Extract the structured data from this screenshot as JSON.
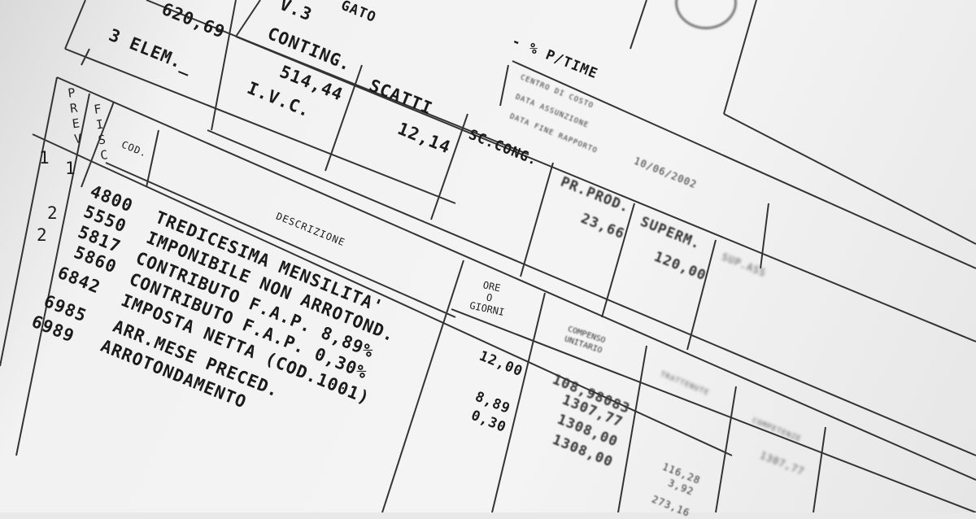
{
  "header": {
    "level_value": "V.3",
    "job_title_fragment": "GATO",
    "part_time": "- % P/TIME",
    "minimum_value": "620,69",
    "third_element": "3 ELEM._",
    "contingency_label": "CONTING.",
    "contingency_value": "514,44",
    "ivc_label": "I.V.C.",
    "increments_label": "SCATTI",
    "increments_value": "12,14",
    "sc_cong_label": "SC.CONG.",
    "pr_prod_label": "PR.PROD.",
    "pr_prod_value": "23,66",
    "superm_label": "SUPERM.",
    "superm_value": "120,00",
    "sup_ass_label": "SUP.ASS",
    "cost_center_label": "CENTRO DI COSTO",
    "hire_date_label": "DATA ASSUNZIONE",
    "end_date_label": "DATA FINE RAPPORTO",
    "date_value": "10/06/2002"
  },
  "table": {
    "columns": {
      "prev": "PREV",
      "fisc": "FISC",
      "code": "COD.",
      "description": "DESCRIZIONE",
      "hours": [
        "ORE",
        "O",
        "GIORNI"
      ],
      "unit_pay": [
        "COMPENSO",
        "UNITARIO"
      ],
      "deductions": "TRATTENUTE",
      "earnings": "COMPETENZE"
    },
    "flags": [
      {
        "prev": "1",
        "fisc": "1"
      },
      {
        "prev": "2",
        "fisc": ""
      },
      {
        "prev": "2",
        "fisc": ""
      }
    ],
    "rows": [
      {
        "code": "4800",
        "description": "TREDICESIMA MENSILITA'",
        "hours": "12,00",
        "unit": "108,98083",
        "deduction": "",
        "earning": "1307,77"
      },
      {
        "code": "5550",
        "description": "IMPONIBILE NON ARROTOND.",
        "hours": "",
        "unit": "1307,77",
        "deduction": "",
        "earning": ""
      },
      {
        "code": "5817",
        "description": "CONTRIBUTO F.A.P. 8,89%",
        "hours": "8,89",
        "unit": "1308,00",
        "deduction": "116,28",
        "earning": ""
      },
      {
        "code": "5860",
        "description": "CONTRIBUTO F.A.P. 0,30%",
        "hours": "0,30",
        "unit": "1308,00",
        "deduction": "3,92",
        "earning": ""
      },
      {
        "code": "6842",
        "description": "IMPOSTA NETTA (COD.1001)",
        "hours": "",
        "unit": "",
        "deduction": "273,16",
        "earning": ""
      },
      {
        "code": "6985",
        "description": "ARR.MESE PRECED.",
        "hours": "",
        "unit": "",
        "deduction": "",
        "earning": ""
      },
      {
        "code": "6989",
        "description": "ARROTONDAMENTO",
        "hours": "",
        "unit": "",
        "deduction": "",
        "earning": ""
      }
    ]
  }
}
